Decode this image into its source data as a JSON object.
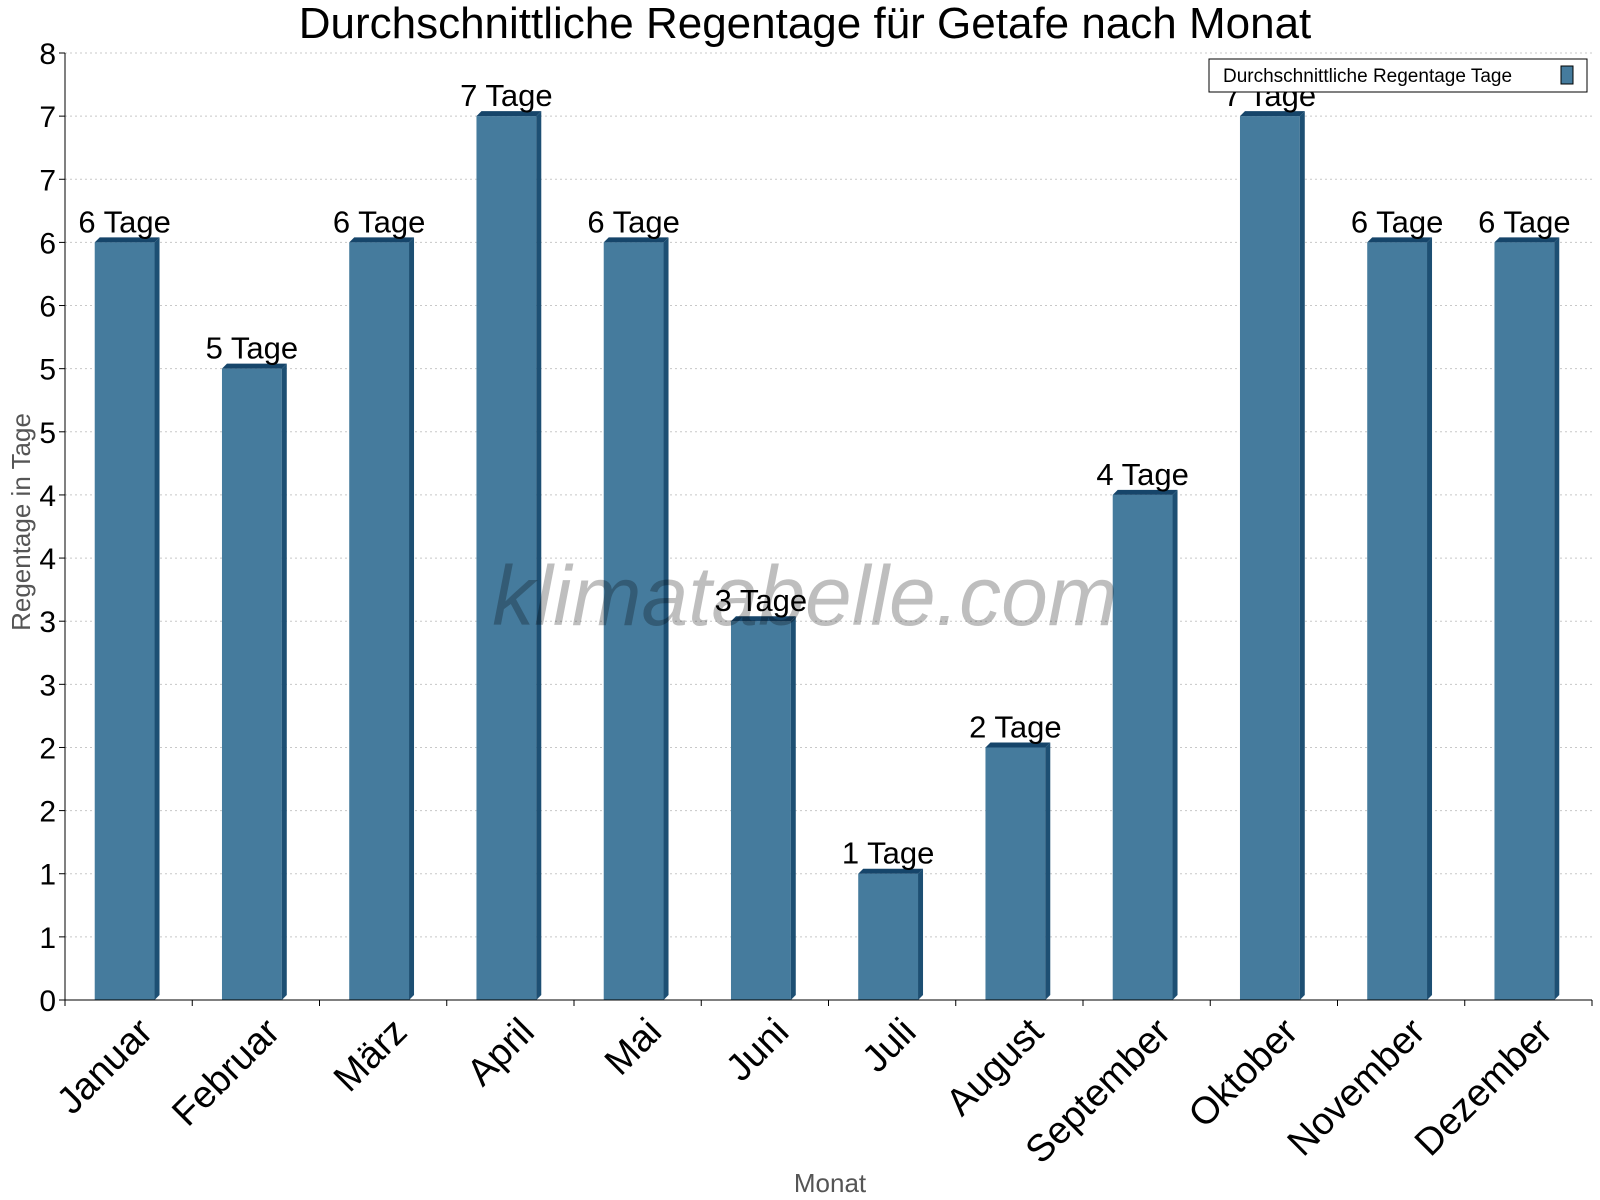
{
  "chart_data": {
    "type": "bar",
    "title": "Durchschnittliche Regentage für Getafe nach Monat",
    "xlabel": "Monat",
    "ylabel": "Regentage in Tage",
    "categories": [
      "Januar",
      "Februar",
      "März",
      "April",
      "Mai",
      "Juni",
      "Juli",
      "August",
      "September",
      "Oktober",
      "November",
      "Dezember"
    ],
    "series": [
      {
        "name": "Durchschnittliche Regentage Tage",
        "values": [
          6,
          5,
          6,
          7,
          6,
          3,
          1,
          2,
          4,
          7,
          6,
          6
        ],
        "labels": [
          "6 Tage",
          "5 Tage",
          "6 Tage",
          "7 Tage",
          "6 Tage",
          "3 Tage",
          "1 Tage",
          "2 Tage",
          "4 Tage",
          "7 Tage",
          "6 Tage",
          "6 Tage"
        ]
      }
    ],
    "ylim": [
      0,
      7.5
    ],
    "yticks": [
      0,
      0.5,
      1,
      1.5,
      2,
      2.5,
      3,
      3.5,
      4,
      4.5,
      5,
      5.5,
      6,
      6.5,
      7,
      7.5
    ],
    "ytick_labels": [
      "0",
      "1",
      "1",
      "2",
      "2",
      "3",
      "3",
      "4",
      "4",
      "5",
      "5",
      "6",
      "6",
      "7",
      "7",
      "8"
    ],
    "grid": true,
    "legend_position": "top-right",
    "colors": {
      "bar": "#457b9d",
      "bar_side": "#1d4f73",
      "bar_top": "#16456a"
    }
  },
  "watermark": "klimatabelle.com"
}
